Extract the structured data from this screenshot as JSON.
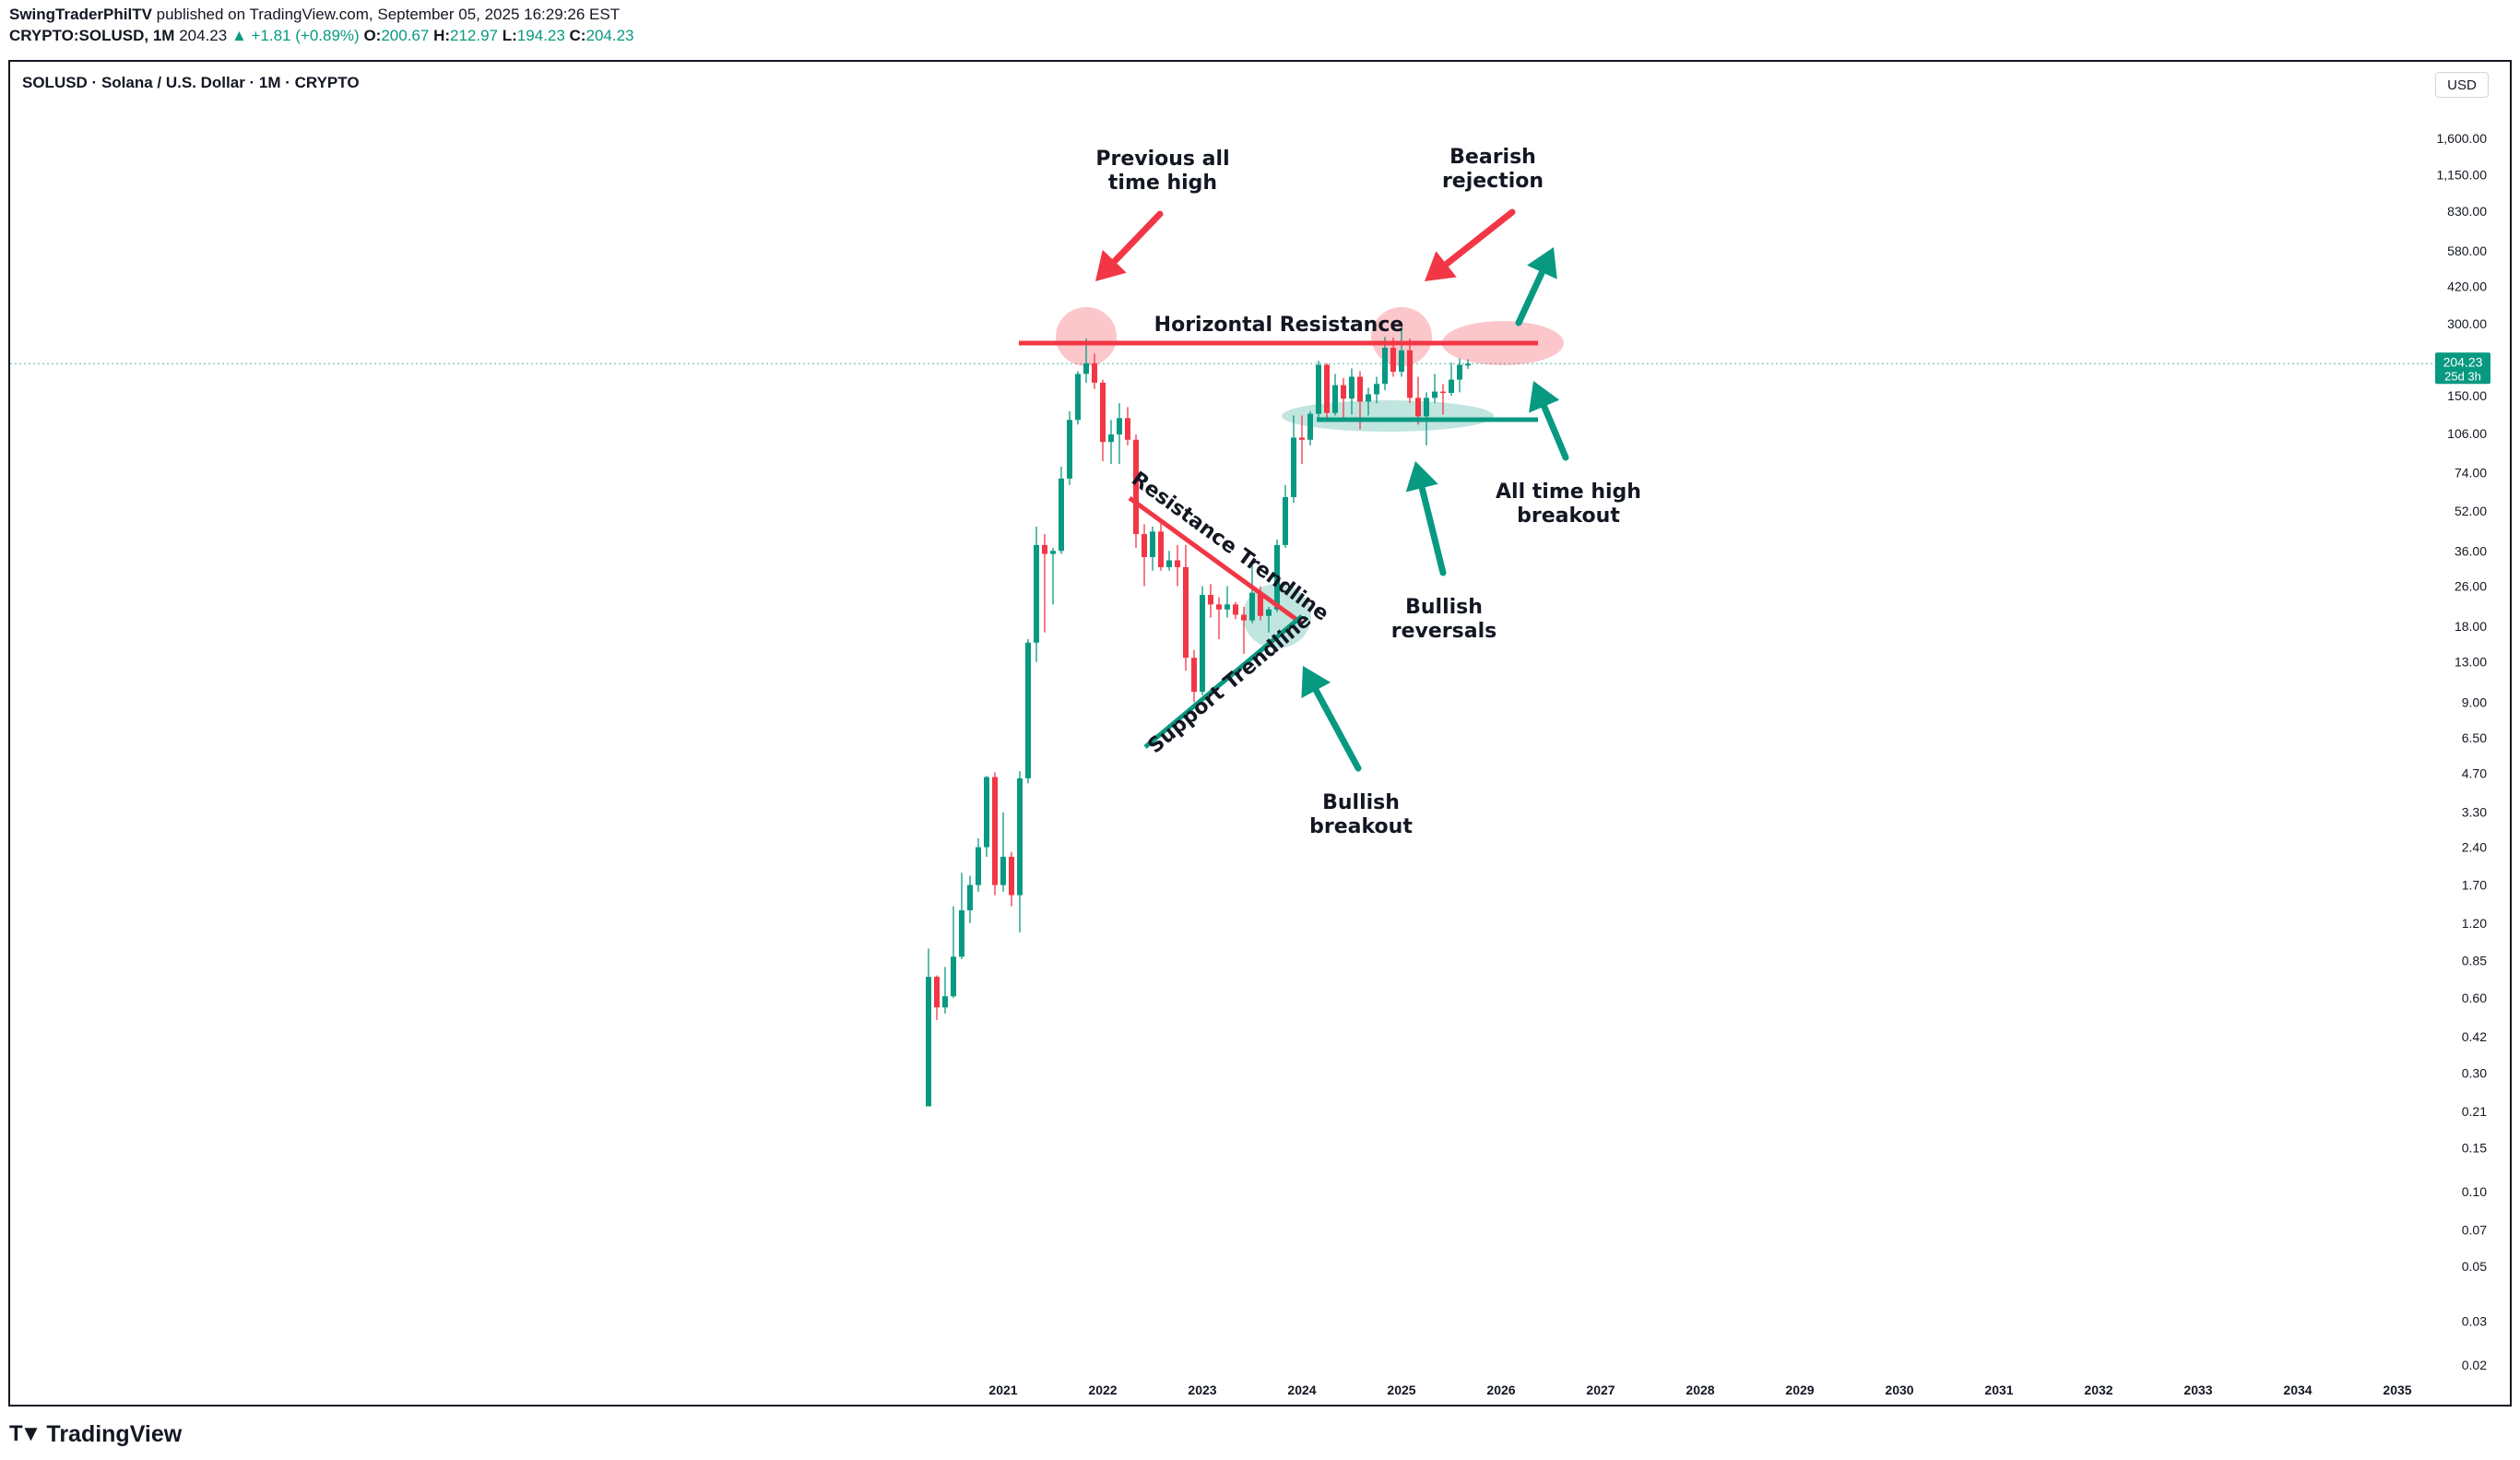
{
  "header": {
    "author": "SwingTraderPhilTV",
    "published": " published on TradingView.com, September 05, 2025 16:29:26 EST",
    "ticker": "CRYPTO:SOLUSD, 1M",
    "last": "204.23",
    "change": "+1.81 (+0.89%)",
    "o_label": "O:",
    "o_value": "200.67",
    "h_label": "H:",
    "h_value": "212.97",
    "l_label": "L:",
    "l_value": "194.23",
    "c_label": "C:",
    "c_value": "204.23"
  },
  "chart_title": "SOLUSD · Solana / U.S. Dollar · 1M · CRYPTO",
  "currency": "USD",
  "price_badge": {
    "price": "204.23",
    "countdown": "25d 3h"
  },
  "brand": "TradingView",
  "colors": {
    "up": "#089981",
    "down": "#f23645",
    "grid": "#d1d4dc"
  },
  "chart_data": {
    "type": "candlestick",
    "scale": "log",
    "y_ticks": [
      "1,600.00",
      "1,150.00",
      "830.00",
      "580.00",
      "420.00",
      "300.00",
      "150.00",
      "106.00",
      "74.00",
      "52.00",
      "36.00",
      "26.00",
      "18.00",
      "13.00",
      "9.00",
      "6.50",
      "4.70",
      "3.30",
      "2.40",
      "1.70",
      "1.20",
      "0.85",
      "0.60",
      "0.42",
      "0.30",
      "0.21",
      "0.15",
      "0.10",
      "0.07",
      "0.05",
      "0.03",
      "0.02"
    ],
    "x_ticks": [
      "2021",
      "2022",
      "2023",
      "2024",
      "2025",
      "2026",
      "2027",
      "2028",
      "2029",
      "2030",
      "2031",
      "2032",
      "2033",
      "2034",
      "2035"
    ],
    "ylim": [
      0.018,
      2200
    ],
    "last_price": 204.23,
    "candles": [
      [
        "2020-04",
        0.22,
        0.95,
        0.22,
        0.73
      ],
      [
        "2020-05",
        0.73,
        0.74,
        0.49,
        0.55
      ],
      [
        "2020-06",
        0.55,
        0.8,
        0.52,
        0.61
      ],
      [
        "2020-07",
        0.61,
        1.4,
        0.6,
        0.88
      ],
      [
        "2020-08",
        0.88,
        1.9,
        0.86,
        1.35
      ],
      [
        "2020-09",
        1.35,
        1.85,
        1.2,
        1.7
      ],
      [
        "2020-10",
        1.7,
        2.6,
        1.6,
        2.4
      ],
      [
        "2020-11",
        2.4,
        4.6,
        2.2,
        4.55
      ],
      [
        "2020-12",
        4.55,
        4.75,
        1.55,
        1.7
      ],
      [
        "2021-01",
        1.7,
        3.3,
        1.6,
        2.2
      ],
      [
        "2021-02",
        2.2,
        2.3,
        1.4,
        1.55
      ],
      [
        "2021-03",
        1.55,
        4.8,
        1.1,
        4.5
      ],
      [
        "2021-04",
        4.5,
        16.0,
        4.3,
        15.5
      ],
      [
        "2021-05",
        15.5,
        45.0,
        13.0,
        38.0
      ],
      [
        "2021-06",
        38.0,
        42.0,
        17.0,
        35.0
      ],
      [
        "2021-07",
        35.0,
        37.0,
        22.0,
        36.0
      ],
      [
        "2021-08",
        36.0,
        78.0,
        35.0,
        70.0
      ],
      [
        "2021-09",
        70.0,
        130.0,
        66.0,
        120.0
      ],
      [
        "2021-10",
        120.0,
        190.0,
        115.0,
        185.0
      ],
      [
        "2021-11",
        185.0,
        260.0,
        170.0,
        205.0
      ],
      [
        "2021-12",
        205.0,
        225.0,
        160.0,
        170.0
      ],
      [
        "2022-01",
        170.0,
        175.0,
        82.0,
        98.0
      ],
      [
        "2022-02",
        98.0,
        120.0,
        80.0,
        105.0
      ],
      [
        "2022-03",
        105.0,
        140.0,
        80.0,
        122.0
      ],
      [
        "2022-04",
        122.0,
        135.0,
        95.0,
        100.0
      ],
      [
        "2022-05",
        100.0,
        105.0,
        37.0,
        42.0
      ],
      [
        "2022-06",
        42.0,
        46.0,
        26.0,
        34.0
      ],
      [
        "2022-07",
        34.0,
        45.0,
        30.0,
        43.0
      ],
      [
        "2022-08",
        43.0,
        48.0,
        30.0,
        31.0
      ],
      [
        "2022-09",
        31.0,
        36.0,
        30.0,
        33.0
      ],
      [
        "2022-10",
        33.0,
        38.0,
        26.0,
        31.0
      ],
      [
        "2022-11",
        31.0,
        38.0,
        12.0,
        13.5
      ],
      [
        "2022-12",
        13.5,
        14.5,
        9.0,
        9.9
      ],
      [
        "2023-01",
        9.9,
        26.0,
        9.6,
        24.0
      ],
      [
        "2023-02",
        24.0,
        26.5,
        19.5,
        22.0
      ],
      [
        "2023-03",
        22.0,
        23.5,
        16.0,
        21.0
      ],
      [
        "2023-04",
        21.0,
        26.0,
        19.5,
        22.0
      ],
      [
        "2023-05",
        22.0,
        22.5,
        19.2,
        20.0
      ],
      [
        "2023-06",
        20.0,
        21.5,
        14.0,
        19.0
      ],
      [
        "2023-07",
        19.0,
        32.0,
        18.5,
        24.5
      ],
      [
        "2023-08",
        24.5,
        26.0,
        19.0,
        19.8
      ],
      [
        "2023-09",
        19.8,
        21.5,
        17.0,
        21.0
      ],
      [
        "2023-10",
        21.0,
        40.0,
        20.5,
        38.0
      ],
      [
        "2023-11",
        38.0,
        66.0,
        37.0,
        59.0
      ],
      [
        "2023-12",
        59.0,
        125.0,
        56.0,
        102.0
      ],
      [
        "2024-01",
        102.0,
        125.0,
        80.0,
        100.0
      ],
      [
        "2024-02",
        100.0,
        130.0,
        95.0,
        127.0
      ],
      [
        "2024-03",
        127.0,
        210.0,
        120.0,
        202.0
      ],
      [
        "2024-04",
        202.0,
        205.0,
        120.0,
        128.0
      ],
      [
        "2024-05",
        128.0,
        185.0,
        125.0,
        166.0
      ],
      [
        "2024-06",
        166.0,
        178.0,
        122.0,
        146.0
      ],
      [
        "2024-07",
        146.0,
        195.0,
        126.0,
        180.0
      ],
      [
        "2024-08",
        180.0,
        190.0,
        110.0,
        142.0
      ],
      [
        "2024-09",
        142.0,
        162.0,
        125.0,
        152.0
      ],
      [
        "2024-10",
        152.0,
        180.0,
        140.0,
        168.0
      ],
      [
        "2024-11",
        168.0,
        264.0,
        158.0,
        238.0
      ],
      [
        "2024-12",
        238.0,
        262.0,
        180.0,
        189.0
      ],
      [
        "2025-01",
        189.0,
        295.0,
        180.0,
        232.0
      ],
      [
        "2025-02",
        232.0,
        260.0,
        140.0,
        147.0
      ],
      [
        "2025-03",
        147.0,
        180.0,
        115.0,
        124.0
      ],
      [
        "2025-04",
        124.0,
        155.0,
        95.0,
        147.0
      ],
      [
        "2025-05",
        147.0,
        185.0,
        140.0,
        156.0
      ],
      [
        "2025-06",
        156.0,
        168.0,
        126.0,
        154.0
      ],
      [
        "2025-07",
        154.0,
        206.0,
        150.0,
        175.0
      ],
      [
        "2025-08",
        175.0,
        215.0,
        155.0,
        202.0
      ],
      [
        "2025-09",
        200.67,
        212.97,
        194.23,
        204.23
      ]
    ],
    "annotations": [
      {
        "text": [
          "Previous all",
          "time high"
        ]
      },
      {
        "text": [
          "Bearish",
          "rejection"
        ]
      },
      {
        "text": [
          "Horizontal Resistance"
        ]
      },
      {
        "text": [
          "Resistance Trendline"
        ]
      },
      {
        "text": [
          "Support Trendline"
        ]
      },
      {
        "text": [
          "Bullish",
          "breakout"
        ]
      },
      {
        "text": [
          "Bullish",
          "reversals"
        ]
      },
      {
        "text": [
          "All time high",
          "breakout"
        ]
      }
    ]
  }
}
